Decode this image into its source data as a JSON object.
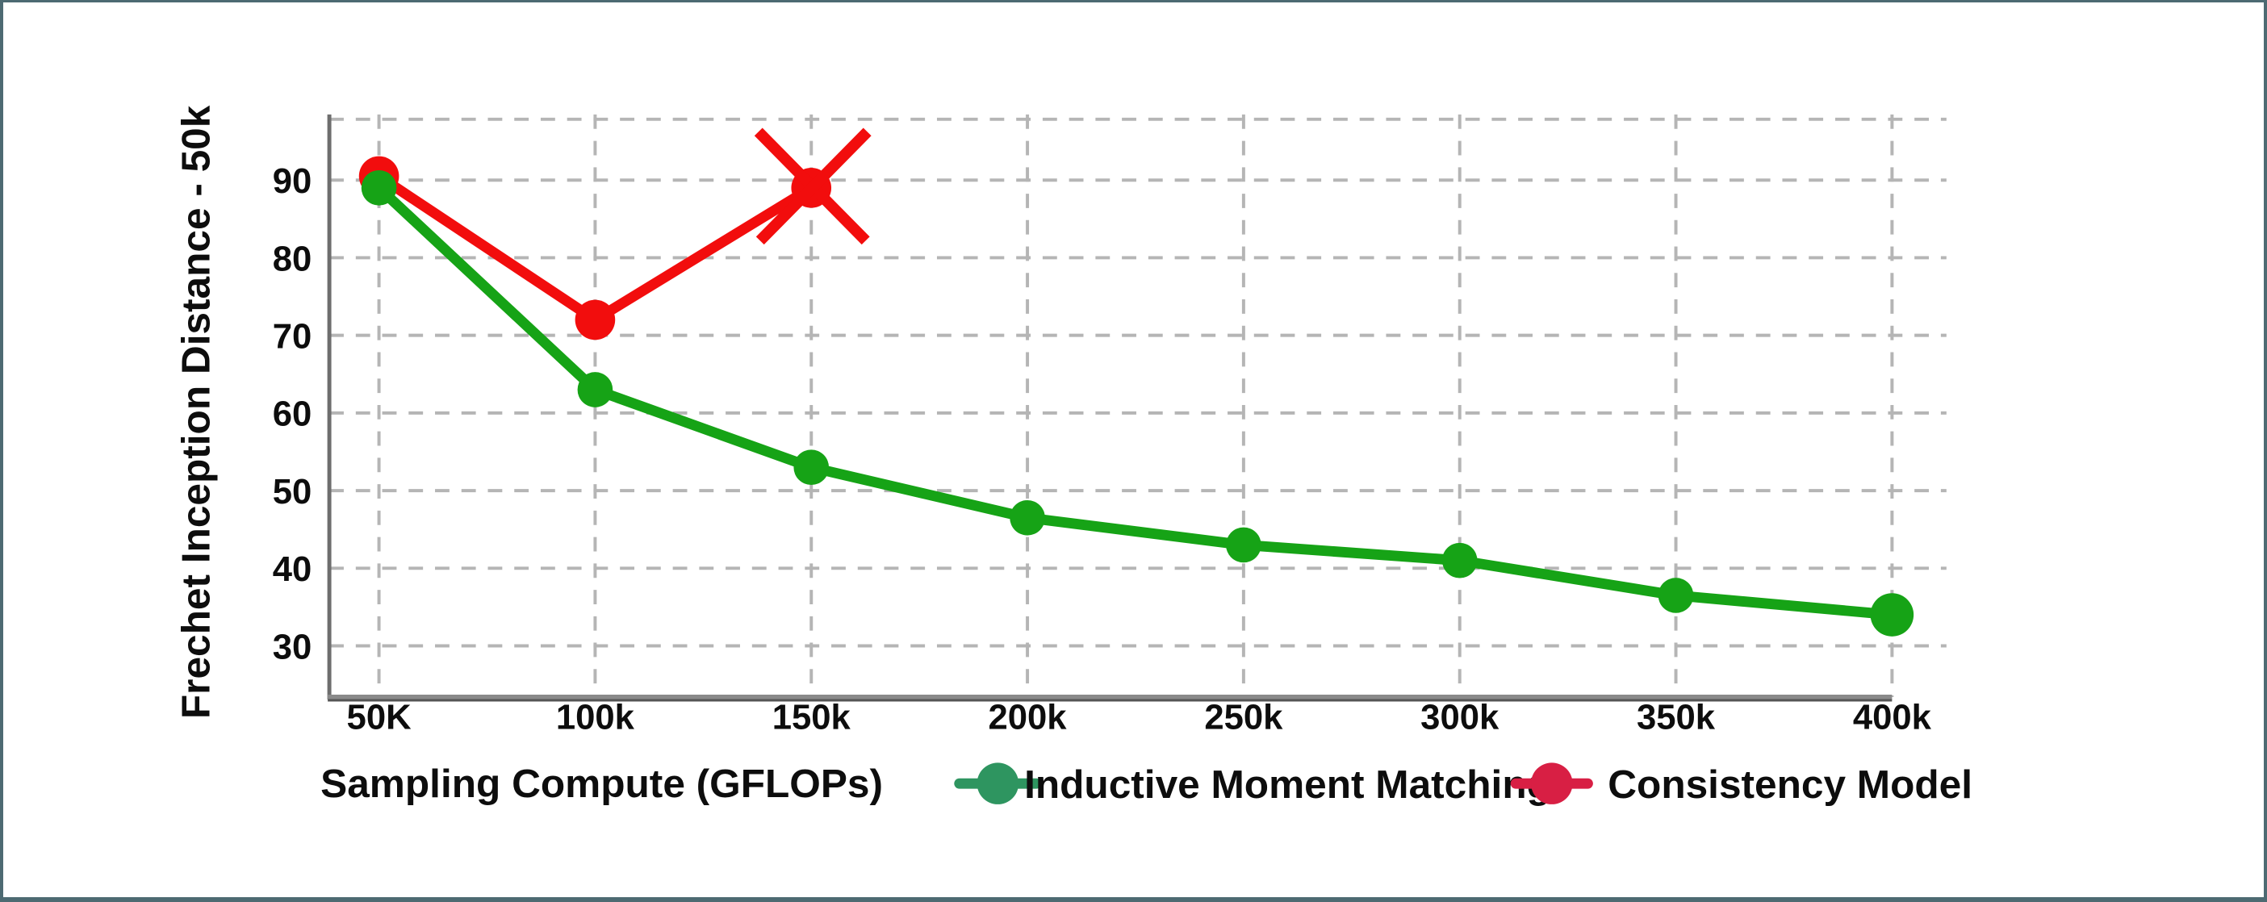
{
  "frame": {
    "border_color": "#4d6a72",
    "background": "#ffffff"
  },
  "chart_data": {
    "type": "line",
    "title": "",
    "xlabel": "Sampling Compute (GFLOPs)",
    "ylabel": "Frechet Inception Distance - 50k",
    "categories": [
      "50K",
      "100k",
      "150k",
      "200k",
      "250k",
      "300k",
      "350k",
      "400k"
    ],
    "x_values_gflops": [
      50000,
      100000,
      150000,
      200000,
      250000,
      300000,
      350000,
      400000
    ],
    "yticks": [
      30,
      40,
      50,
      60,
      70,
      80,
      90
    ],
    "ylim": [
      23,
      98
    ],
    "grid": "dashed",
    "grid_color": "#b5b5b5",
    "axis_line_color": "#6e6e6e",
    "text_color": "#0d0d0d",
    "legend_position": "bottom",
    "series": [
      {
        "name": "Inductive Moment Matching",
        "color": "#16a316",
        "legend_color": "#2e9560",
        "values": [
          89,
          63,
          53,
          46.5,
          43,
          41,
          36.5,
          34
        ]
      },
      {
        "name": "Consistency Model",
        "color": "#f20d0d",
        "legend_color": "#d81f44",
        "values": [
          90.5,
          72,
          89,
          null,
          null,
          null,
          null,
          null
        ]
      }
    ],
    "annotation": {
      "type": "x-cross",
      "series": "Consistency Model",
      "at_category": "150k",
      "value": 89,
      "color": "#f20d0d"
    }
  }
}
